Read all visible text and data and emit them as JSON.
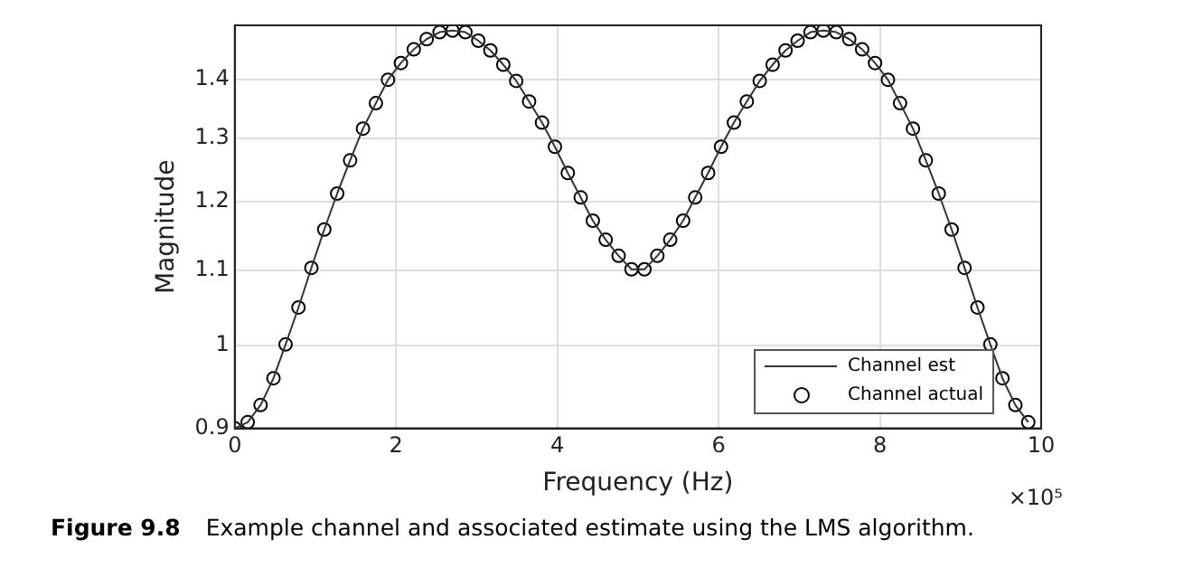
{
  "chart_data": {
    "type": "line",
    "xlabel": "Frequency (Hz)",
    "ylabel": "Magnitude",
    "x": [
      0,
      0.16,
      0.32,
      0.48,
      0.63,
      0.79,
      0.95,
      1.11,
      1.27,
      1.43,
      1.59,
      1.75,
      1.9,
      2.06,
      2.22,
      2.38,
      2.54,
      2.7,
      2.86,
      3.02,
      3.17,
      3.33,
      3.49,
      3.65,
      3.81,
      3.97,
      4.13,
      4.29,
      4.44,
      4.6,
      4.76,
      4.92,
      5.08,
      5.24,
      5.4,
      5.56,
      5.71,
      5.87,
      6.03,
      6.19,
      6.35,
      6.51,
      6.67,
      6.83,
      6.98,
      7.14,
      7.3,
      7.46,
      7.62,
      7.78,
      7.94,
      8.1,
      8.25,
      8.41,
      8.57,
      8.73,
      8.89,
      9.05,
      9.21,
      9.37,
      9.52,
      9.68,
      9.84
    ],
    "series": [
      {
        "name": "Channel est",
        "type": "line",
        "marker": "none",
        "color": "#333333",
        "values": [
          0.9,
          0.907,
          0.927,
          0.959,
          1.001,
          1.049,
          1.103,
          1.158,
          1.212,
          1.264,
          1.316,
          1.359,
          1.4,
          1.43,
          1.455,
          1.474,
          1.487,
          1.49,
          1.487,
          1.471,
          1.453,
          1.427,
          1.398,
          1.362,
          1.326,
          1.286,
          1.244,
          1.206,
          1.171,
          1.143,
          1.12,
          1.101,
          1.101,
          1.12,
          1.143,
          1.171,
          1.206,
          1.244,
          1.286,
          1.326,
          1.362,
          1.398,
          1.427,
          1.453,
          1.471,
          1.487,
          1.49,
          1.487,
          1.474,
          1.455,
          1.43,
          1.4,
          1.359,
          1.316,
          1.264,
          1.212,
          1.158,
          1.103,
          1.049,
          1.001,
          0.959,
          0.927,
          0.907
        ]
      },
      {
        "name": "Channel actual",
        "type": "scatter",
        "marker": "circle",
        "color": "#000000",
        "values": [
          0.9,
          0.907,
          0.927,
          0.959,
          1.001,
          1.049,
          1.103,
          1.158,
          1.212,
          1.264,
          1.316,
          1.359,
          1.4,
          1.43,
          1.455,
          1.474,
          1.487,
          1.49,
          1.487,
          1.471,
          1.453,
          1.427,
          1.398,
          1.362,
          1.326,
          1.286,
          1.244,
          1.206,
          1.171,
          1.143,
          1.12,
          1.101,
          1.101,
          1.12,
          1.143,
          1.171,
          1.206,
          1.244,
          1.286,
          1.326,
          1.362,
          1.398,
          1.427,
          1.453,
          1.471,
          1.487,
          1.49,
          1.487,
          1.474,
          1.455,
          1.43,
          1.4,
          1.359,
          1.316,
          1.264,
          1.212,
          1.158,
          1.103,
          1.049,
          1.001,
          0.959,
          0.927,
          0.907
        ]
      }
    ],
    "xlim": [
      0,
      10
    ],
    "xticks": [
      0,
      2,
      4,
      6,
      8,
      10
    ],
    "ylim": [
      0.9,
      1.5
    ],
    "yticks": [
      0.9,
      1,
      1.1,
      1.2,
      1.3,
      1.4
    ],
    "log": "y",
    "grid": true,
    "legend": "bottom right",
    "annotations": [
      "×10⁵",
      "Figure 9.8",
      "Example channel and associated estimate using the LMS algorithm."
    ]
  }
}
